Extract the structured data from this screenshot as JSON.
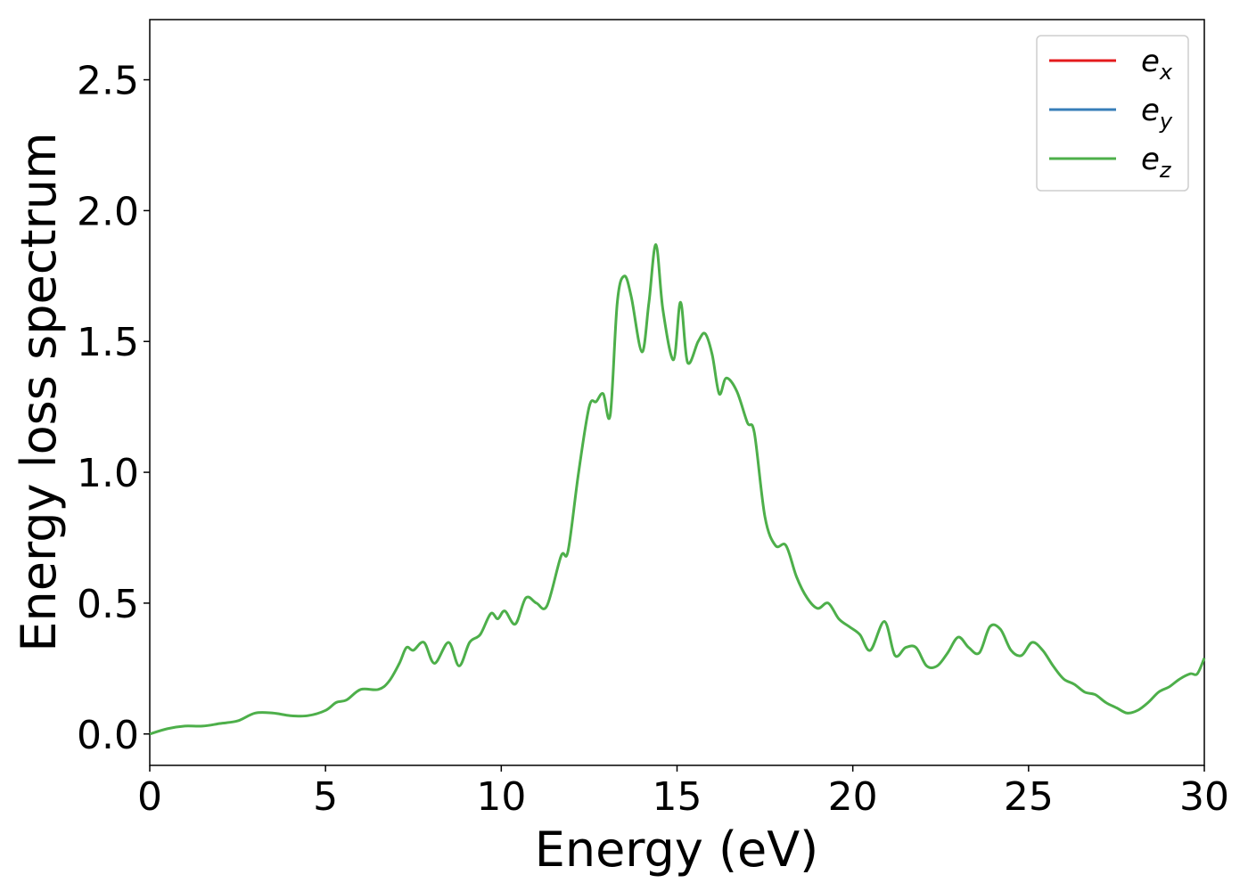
{
  "chart_data": {
    "type": "line",
    "xlabel": "Energy (eV)",
    "ylabel": "Energy loss spectrum",
    "xlim": [
      0,
      30
    ],
    "ylim": [
      -0.12,
      2.73
    ],
    "xticks": [
      0,
      5,
      10,
      15,
      20,
      25,
      30
    ],
    "xtick_labels": [
      "0",
      "5",
      "10",
      "15",
      "20",
      "25",
      "30"
    ],
    "yticks": [
      0.0,
      0.5,
      1.0,
      1.5,
      2.0,
      2.5
    ],
    "ytick_labels": [
      "0.0",
      "0.5",
      "1.0",
      "1.5",
      "2.0",
      "2.5"
    ],
    "grid": false,
    "legend_position": "top-right",
    "series": [
      {
        "name": "e",
        "subscript": "x",
        "color": "#e41a1c",
        "x": [],
        "y": []
      },
      {
        "name": "e",
        "subscript": "y",
        "color": "#377eb8",
        "x": [],
        "y": []
      },
      {
        "name": "e",
        "subscript": "z",
        "color": "#4daf4a",
        "x": [
          0,
          0.5,
          1.0,
          1.5,
          2.0,
          2.5,
          3.0,
          3.5,
          4.0,
          4.5,
          5.0,
          5.3,
          5.6,
          6.0,
          6.5,
          6.8,
          7.1,
          7.3,
          7.5,
          7.8,
          8.1,
          8.5,
          8.8,
          9.1,
          9.4,
          9.7,
          9.9,
          10.1,
          10.4,
          10.7,
          11.0,
          11.3,
          11.7,
          11.9,
          12.2,
          12.5,
          12.7,
          12.9,
          13.1,
          13.3,
          13.5,
          13.7,
          14.0,
          14.2,
          14.4,
          14.6,
          14.9,
          15.1,
          15.3,
          15.6,
          15.8,
          16.0,
          16.2,
          16.4,
          16.7,
          17.0,
          17.2,
          17.5,
          17.8,
          18.1,
          18.4,
          18.7,
          19.0,
          19.3,
          19.6,
          19.9,
          20.2,
          20.5,
          20.9,
          21.2,
          21.5,
          21.8,
          22.1,
          22.4,
          22.7,
          23.0,
          23.3,
          23.6,
          23.9,
          24.2,
          24.5,
          24.8,
          25.1,
          25.4,
          25.7,
          26.0,
          26.3,
          26.6,
          26.9,
          27.2,
          27.5,
          27.8,
          28.1,
          28.4,
          28.7,
          29.0,
          29.3,
          29.6,
          29.8,
          30.0
        ],
        "y": [
          0.0,
          0.02,
          0.03,
          0.03,
          0.04,
          0.05,
          0.08,
          0.08,
          0.07,
          0.07,
          0.09,
          0.12,
          0.13,
          0.17,
          0.17,
          0.2,
          0.27,
          0.33,
          0.32,
          0.35,
          0.27,
          0.35,
          0.26,
          0.35,
          0.38,
          0.46,
          0.44,
          0.47,
          0.42,
          0.52,
          0.5,
          0.49,
          0.68,
          0.7,
          1.0,
          1.25,
          1.27,
          1.3,
          1.22,
          1.65,
          1.75,
          1.67,
          1.46,
          1.65,
          1.87,
          1.62,
          1.43,
          1.65,
          1.42,
          1.5,
          1.53,
          1.45,
          1.3,
          1.36,
          1.31,
          1.19,
          1.15,
          0.83,
          0.72,
          0.72,
          0.6,
          0.52,
          0.48,
          0.5,
          0.44,
          0.41,
          0.38,
          0.32,
          0.43,
          0.3,
          0.33,
          0.33,
          0.26,
          0.26,
          0.31,
          0.37,
          0.33,
          0.31,
          0.41,
          0.4,
          0.32,
          0.3,
          0.35,
          0.32,
          0.26,
          0.21,
          0.19,
          0.16,
          0.15,
          0.12,
          0.1,
          0.08,
          0.09,
          0.12,
          0.16,
          0.18,
          0.21,
          0.23,
          0.23,
          0.29
        ]
      }
    ]
  }
}
